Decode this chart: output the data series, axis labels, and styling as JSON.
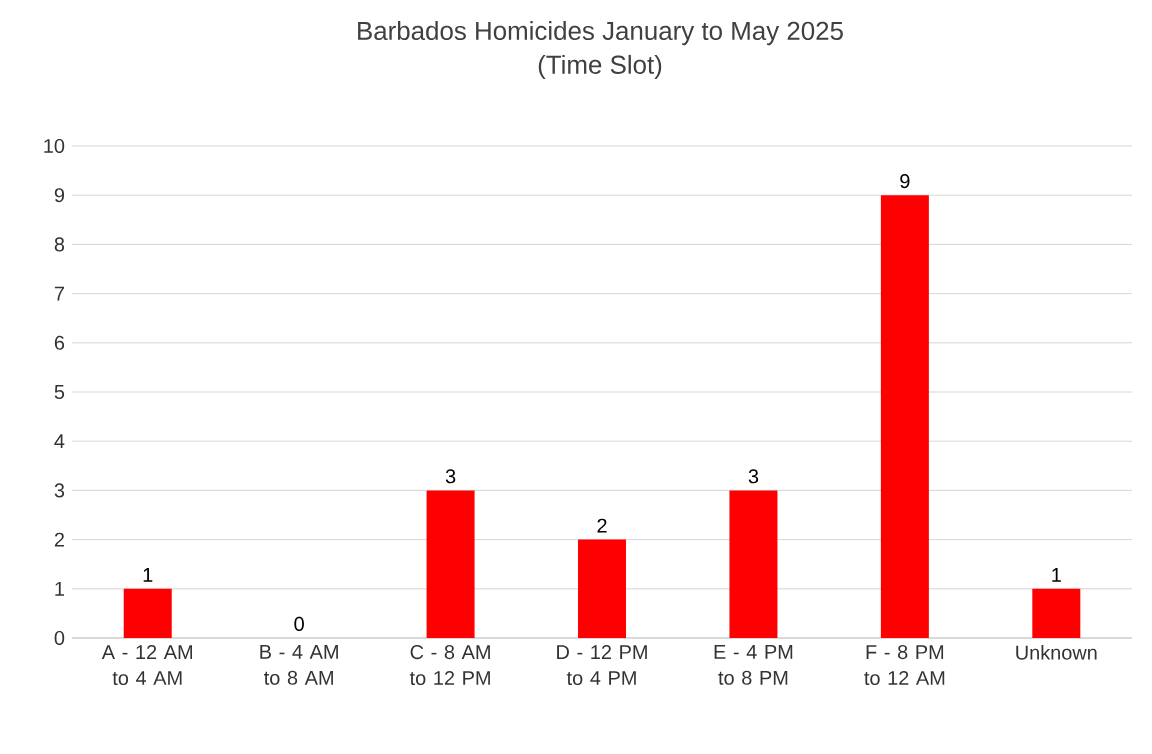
{
  "chart_data": {
    "type": "bar",
    "title": "Barbados Homicides January to May 2025",
    "subtitle": "(Time Slot)",
    "categories": [
      "A - 12 AM to 4 AM",
      "B - 4 AM to 8 AM",
      "C - 8 AM to 12 PM",
      "D - 12 PM to 4 PM",
      "E - 4 PM to 8 PM",
      "F - 8 PM to 12 AM",
      "Unknown"
    ],
    "values": [
      1,
      0,
      3,
      2,
      3,
      9,
      1
    ],
    "color": "#ff0000",
    "ylim": [
      0,
      10
    ],
    "yticks": [
      0,
      1,
      2,
      3,
      4,
      5,
      6,
      7,
      8,
      9,
      10
    ],
    "grid": "y",
    "data_labels": true
  }
}
